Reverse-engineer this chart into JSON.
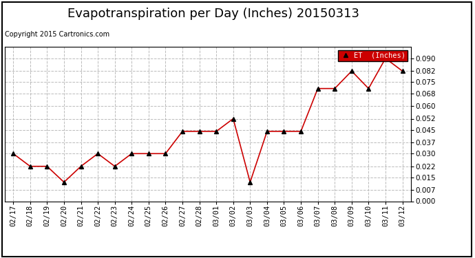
{
  "title": "Evapotranspiration per Day (Inches) 20150313",
  "copyright": "Copyright 2015 Cartronics.com",
  "legend_label": "ET  (Inches)",
  "dates": [
    "02/17",
    "02/18",
    "02/19",
    "02/20",
    "02/21",
    "02/22",
    "02/23",
    "02/24",
    "02/25",
    "02/26",
    "02/27",
    "02/28",
    "03/01",
    "03/02",
    "03/03",
    "03/04",
    "03/05",
    "03/06",
    "03/07",
    "03/08",
    "03/09",
    "03/10",
    "03/11",
    "03/12"
  ],
  "values": [
    0.03,
    0.022,
    0.022,
    0.012,
    0.022,
    0.03,
    0.022,
    0.03,
    0.03,
    0.03,
    0.044,
    0.044,
    0.044,
    0.052,
    0.012,
    0.044,
    0.044,
    0.044,
    0.071,
    0.071,
    0.082,
    0.071,
    0.09,
    0.082
  ],
  "line_color": "#cc0000",
  "marker": "^",
  "marker_color": "black",
  "marker_size": 4,
  "ylim": [
    0.0,
    0.0975
  ],
  "yticks": [
    0.0,
    0.007,
    0.015,
    0.022,
    0.03,
    0.037,
    0.045,
    0.052,
    0.06,
    0.068,
    0.075,
    0.082,
    0.09
  ],
  "grid_color": "#bbbbbb",
  "background_color": "#ffffff",
  "title_fontsize": 13,
  "copyright_fontsize": 7,
  "legend_bg": "#cc0000",
  "legend_text_color": "#ffffff",
  "tick_fontsize": 7.5
}
